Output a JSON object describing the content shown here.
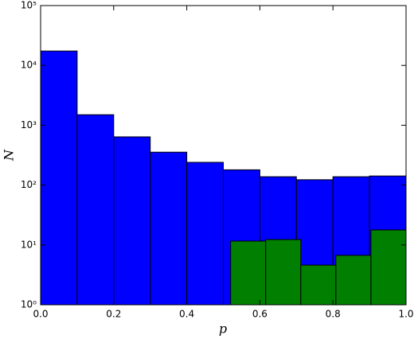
{
  "chart_data": {
    "type": "histogram",
    "xlabel": "p",
    "ylabel": "N",
    "log_y": true,
    "xlim": [
      0.0,
      1.0
    ],
    "ylim": [
      1,
      100000
    ],
    "xticks": [
      {
        "value": 0,
        "label": "0.0"
      },
      {
        "value": 0.2,
        "label": "0.2"
      },
      {
        "value": 0.4,
        "label": "0.4"
      },
      {
        "value": 0.6,
        "label": "0.6"
      },
      {
        "value": 0.8,
        "label": "0.8"
      },
      {
        "value": 1,
        "label": "1.0"
      }
    ],
    "yticks": [
      {
        "value": 1,
        "label": "10⁰"
      },
      {
        "value": 10,
        "label": "10¹"
      },
      {
        "value": 100,
        "label": "10²"
      },
      {
        "value": 1000,
        "label": "10³"
      },
      {
        "value": 10000,
        "label": "10⁴"
      },
      {
        "value": 100000,
        "label": "10⁵"
      }
    ],
    "series": [
      {
        "color": "#0000ff",
        "bins": [
          0.0,
          0.1,
          0.2,
          0.3,
          0.4,
          0.5,
          0.6,
          0.7,
          0.8,
          0.9,
          1.0
        ],
        "values": [
          17400,
          1500,
          640,
          355,
          240,
          180,
          138,
          123,
          138,
          142
        ]
      },
      {
        "color": "#007f00",
        "bins": [
          0.52,
          0.616,
          0.712,
          0.808,
          0.904,
          1.0
        ],
        "values": [
          11.6,
          12.3,
          4.6,
          6.7,
          17.8
        ]
      }
    ]
  }
}
